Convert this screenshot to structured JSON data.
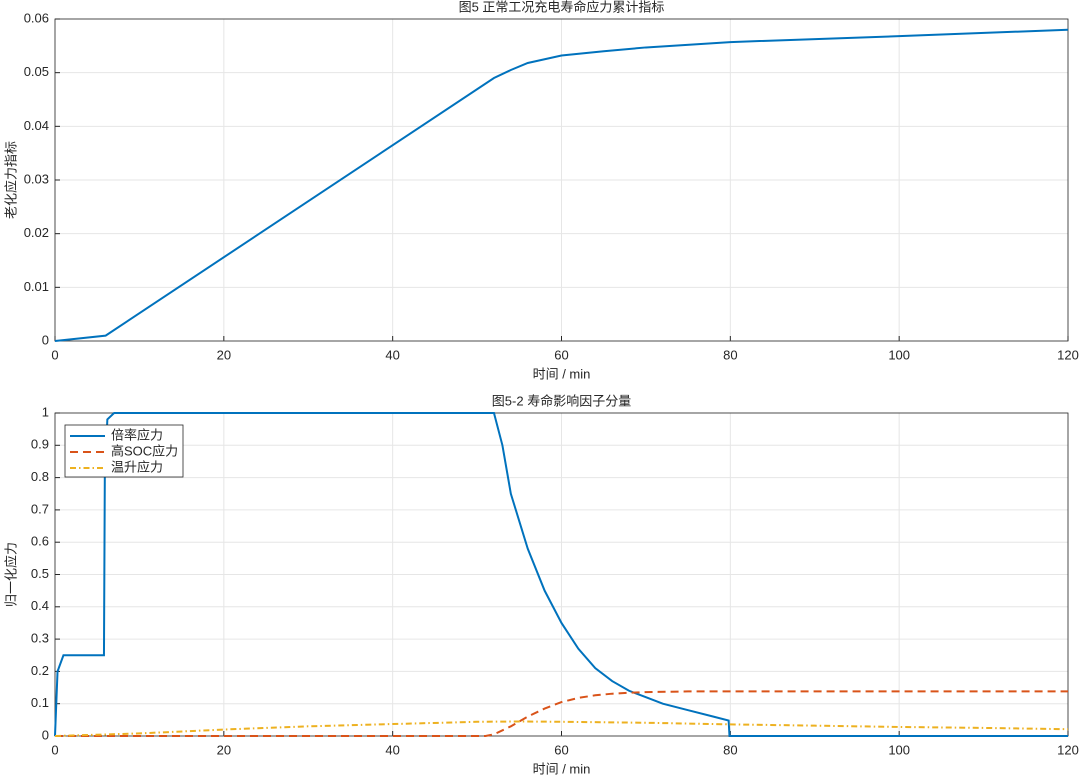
{
  "chart_data": [
    {
      "type": "line",
      "title": "图5 正常工况充电寿命应力累计指标",
      "xlabel": "时间 / min",
      "ylabel": "老化应力指标",
      "xlim": [
        0,
        120
      ],
      "xticks": [
        0,
        20,
        40,
        60,
        80,
        100,
        120
      ],
      "ylim": [
        0,
        0.06
      ],
      "yticks": [
        0,
        0.01,
        0.02,
        0.03,
        0.04,
        0.05,
        0.06
      ],
      "grid": true,
      "series": [
        {
          "color": "#0072bd",
          "dash": "solid",
          "x": [
            0,
            6,
            52,
            54,
            56,
            60,
            65,
            70,
            80,
            100,
            120
          ],
          "values": [
            0,
            0.001,
            0.049,
            0.0505,
            0.0518,
            0.0532,
            0.054,
            0.0547,
            0.0557,
            0.0568,
            0.058
          ]
        }
      ]
    },
    {
      "type": "line",
      "title": "图5-2 寿命影响因子分量",
      "xlabel": "时间 / min",
      "ylabel": "归一化应力",
      "xlim": [
        0,
        120
      ],
      "xticks": [
        0,
        20,
        40,
        60,
        80,
        100,
        120
      ],
      "ylim": [
        0,
        1
      ],
      "yticks": [
        0,
        0.1,
        0.2,
        0.3,
        0.4,
        0.5,
        0.6,
        0.7,
        0.8,
        0.9,
        1
      ],
      "grid": true,
      "legend": "upper left",
      "series": [
        {
          "name": "倍率应力",
          "color": "#0072bd",
          "dash": "solid",
          "x": [
            0,
            0.3,
            1,
            5.8,
            5.9,
            6.2,
            7,
            52,
            53,
            54,
            56,
            58,
            60,
            62,
            64,
            66,
            68,
            70,
            72,
            75,
            78,
            79.8,
            79.9,
            120
          ],
          "values": [
            0,
            0.2,
            0.25,
            0.25,
            0.8,
            0.98,
            1,
            1,
            0.9,
            0.75,
            0.58,
            0.45,
            0.35,
            0.27,
            0.21,
            0.17,
            0.14,
            0.12,
            0.1,
            0.08,
            0.06,
            0.048,
            0,
            0
          ]
        },
        {
          "name": "高SOC应力",
          "color": "#d95319",
          "dash": "dashed",
          "x": [
            0,
            51,
            52,
            54,
            56,
            58,
            60,
            62,
            64,
            66,
            68,
            70,
            75,
            80,
            120
          ],
          "values": [
            0,
            0,
            0.005,
            0.03,
            0.06,
            0.085,
            0.105,
            0.118,
            0.126,
            0.131,
            0.134,
            0.136,
            0.138,
            0.138,
            0.138
          ]
        },
        {
          "name": "温升应力",
          "color": "#edb120",
          "dash": "dashdot",
          "x": [
            0,
            10,
            20,
            30,
            40,
            50,
            55,
            60,
            70,
            80,
            90,
            100,
            110,
            120
          ],
          "values": [
            0,
            0.008,
            0.02,
            0.03,
            0.037,
            0.044,
            0.045,
            0.044,
            0.041,
            0.036,
            0.032,
            0.028,
            0.025,
            0.021
          ]
        }
      ]
    }
  ]
}
